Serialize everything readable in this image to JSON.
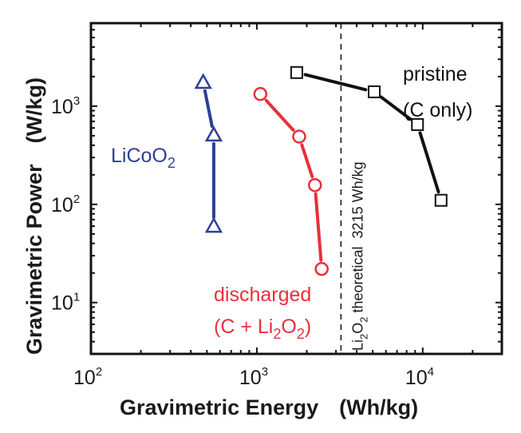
{
  "chart_data": {
    "type": "line",
    "title": "",
    "xlabel": "Gravimetric Energy",
    "xlabel_unit": "(Wh/kg)",
    "ylabel": "Gravimetric Power",
    "ylabel_unit": "(W/kg)",
    "xscale": "log",
    "yscale": "log",
    "xlim": [
      100,
      30000
    ],
    "ylim": [
      3,
      7000
    ],
    "grid": false,
    "x_ticks": [
      {
        "value": 100,
        "base": "10",
        "exp": "2"
      },
      {
        "value": 1000,
        "base": "10",
        "exp": "3"
      },
      {
        "value": 10000,
        "base": "10",
        "exp": "4"
      }
    ],
    "y_ticks": [
      {
        "value": 10,
        "base": "10",
        "exp": "1"
      },
      {
        "value": 100,
        "base": "10",
        "exp": "2"
      },
      {
        "value": 1000,
        "base": "10",
        "exp": "3"
      }
    ],
    "series": [
      {
        "name": "LiCoO2",
        "label_main": "LiCoO",
        "label_sub": "2",
        "color": "#2f3f93",
        "marker": "triangle",
        "x": [
          475,
          550,
          550
        ],
        "y": [
          1750,
          510,
          60
        ]
      },
      {
        "name": "discharged (C + Li2O2)",
        "label_line1": "discharged",
        "label_line2_parts": [
          "(C + Li",
          "2",
          "O",
          "2",
          ")"
        ],
        "color": "#e8303a",
        "marker": "circle",
        "x": [
          1050,
          1800,
          2240,
          2460
        ],
        "y": [
          1330,
          490,
          157,
          22
        ]
      },
      {
        "name": "pristine (C only)",
        "label_line1": "pristine",
        "label_line2": "(C only)",
        "color": "#111111",
        "marker": "square",
        "x": [
          1740,
          5100,
          9300,
          12900
        ],
        "y": [
          2200,
          1400,
          650,
          110
        ]
      }
    ],
    "reference_line": {
      "orientation": "vertical",
      "x": 3215,
      "style": "dashed",
      "label_parts": [
        "Li",
        "2",
        "O",
        "2",
        " theoretical  3215 Wh/kg"
      ]
    }
  }
}
